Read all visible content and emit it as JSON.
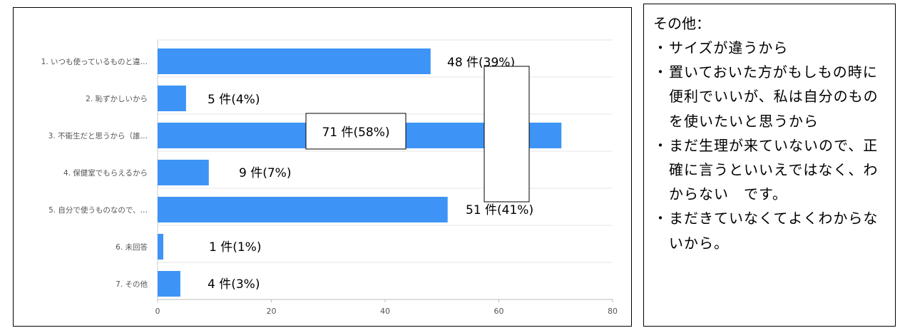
{
  "chart_data": {
    "type": "bar",
    "orientation": "horizontal",
    "categories": [
      "1. いつも使っているものと違…",
      "2. 恥ずかしいから",
      "3. 不衛生だと思うから（誰…",
      "4. 保健室でもらえるから",
      "5. 自分で使うものなので、…",
      "6. 未回答",
      "7. その他"
    ],
    "values": [
      48,
      5,
      71,
      9,
      51,
      1,
      4
    ],
    "data_labels": [
      "48 件(39%)",
      "5 件(4%)",
      "71 件(58%)",
      "9 件(7%)",
      "51 件(41%)",
      "1 件(1%)",
      "4 件(3%)"
    ],
    "xlim": [
      0,
      80
    ],
    "xticks": [
      0,
      20,
      40,
      60,
      80
    ],
    "grid": true,
    "bar_color": "#3d94f6",
    "title": "",
    "xlabel": "",
    "ylabel": ""
  },
  "notes": {
    "title": "その他：",
    "items": [
      "サイズが違うから",
      "置いておいた方がもしもの時に便利でいいが、私は自分のものを使いたいと思うから",
      "まだ生理が来ていないので、正確に言うといいえではなく、わからない　です。",
      "まだきていなくてよくわからないから。"
    ]
  }
}
